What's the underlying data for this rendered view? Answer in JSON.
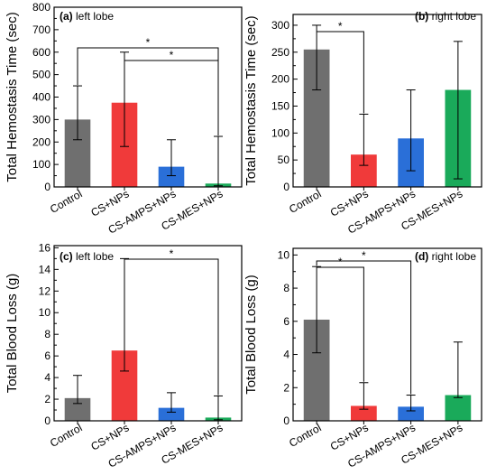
{
  "colors": {
    "Control": "#6f6f6f",
    "CS+NPs": "#f03a3a",
    "CS-AMPS+NPs": "#2a6fd8",
    "CS-MES+NPs": "#1aaa5a",
    "axis": "#000000"
  },
  "chart_data": [
    {
      "type": "bar",
      "panel": "(a)",
      "annotation": "left lobe",
      "ylabel": "Total Hemostasis Time (sec)",
      "ylim": [
        0,
        800
      ],
      "yticks": [
        0,
        100,
        200,
        300,
        400,
        500,
        600,
        700,
        800
      ],
      "categories": [
        "Control",
        "CS+NPs",
        "CS-AMPS+NPs",
        "CS-MES+NPs"
      ],
      "values": [
        300,
        375,
        90,
        15
      ],
      "error_low": [
        210,
        180,
        50,
        5
      ],
      "error_high": [
        450,
        600,
        210,
        225
      ],
      "significance": [
        {
          "from": 0,
          "to": 3,
          "label": "*"
        },
        {
          "from": 1,
          "to": 3,
          "label": "*"
        }
      ]
    },
    {
      "type": "bar",
      "panel": "(b)",
      "annotation": "right lobe",
      "ylabel": "Total Hemostasis Time (sec)",
      "ylim": [
        0,
        320
      ],
      "yticks": [
        0,
        50,
        100,
        150,
        200,
        250,
        300
      ],
      "categories": [
        "Control",
        "CS+NPs",
        "CS-AMPS+NPs",
        "CS-MES+NPs"
      ],
      "values": [
        255,
        60,
        90,
        180
      ],
      "error_low": [
        180,
        40,
        30,
        15
      ],
      "error_high": [
        300,
        135,
        180,
        270
      ],
      "significance": [
        {
          "from": 0,
          "to": 1,
          "label": "*"
        }
      ]
    },
    {
      "type": "bar",
      "panel": "(c)",
      "annotation": "left lobe",
      "ylabel": "Total Blood Loss (g)",
      "ylim": [
        0,
        16.2
      ],
      "yticks": [
        0,
        2,
        4,
        6,
        8,
        10,
        12,
        14,
        16
      ],
      "categories": [
        "Control",
        "CS+NPs",
        "CS-AMPS+NPs",
        "CS-MES+NPs"
      ],
      "values": [
        2.1,
        6.5,
        1.2,
        0.3
      ],
      "error_low": [
        1.6,
        4.6,
        0.8,
        0.1
      ],
      "error_high": [
        4.2,
        15.0,
        2.6,
        2.3
      ],
      "significance": [
        {
          "from": 1,
          "to": 3,
          "label": "*"
        }
      ]
    },
    {
      "type": "bar",
      "panel": "(d)",
      "annotation": "right lobe",
      "ylabel": "Total Blood Loss (g)",
      "ylim": [
        0,
        10.4
      ],
      "yticks": [
        0,
        2,
        4,
        6,
        8,
        10
      ],
      "categories": [
        "Control",
        "CS+NPs",
        "CS-AMPS+NPs",
        "CS-MES+NPs"
      ],
      "values": [
        6.1,
        0.9,
        0.85,
        1.55
      ],
      "error_low": [
        4.1,
        0.7,
        0.6,
        1.4
      ],
      "error_high": [
        9.3,
        2.3,
        1.55,
        4.75
      ],
      "significance": [
        {
          "from": 0,
          "to": 1,
          "label": "*"
        },
        {
          "from": 0,
          "to": 2,
          "label": "*"
        }
      ]
    }
  ]
}
